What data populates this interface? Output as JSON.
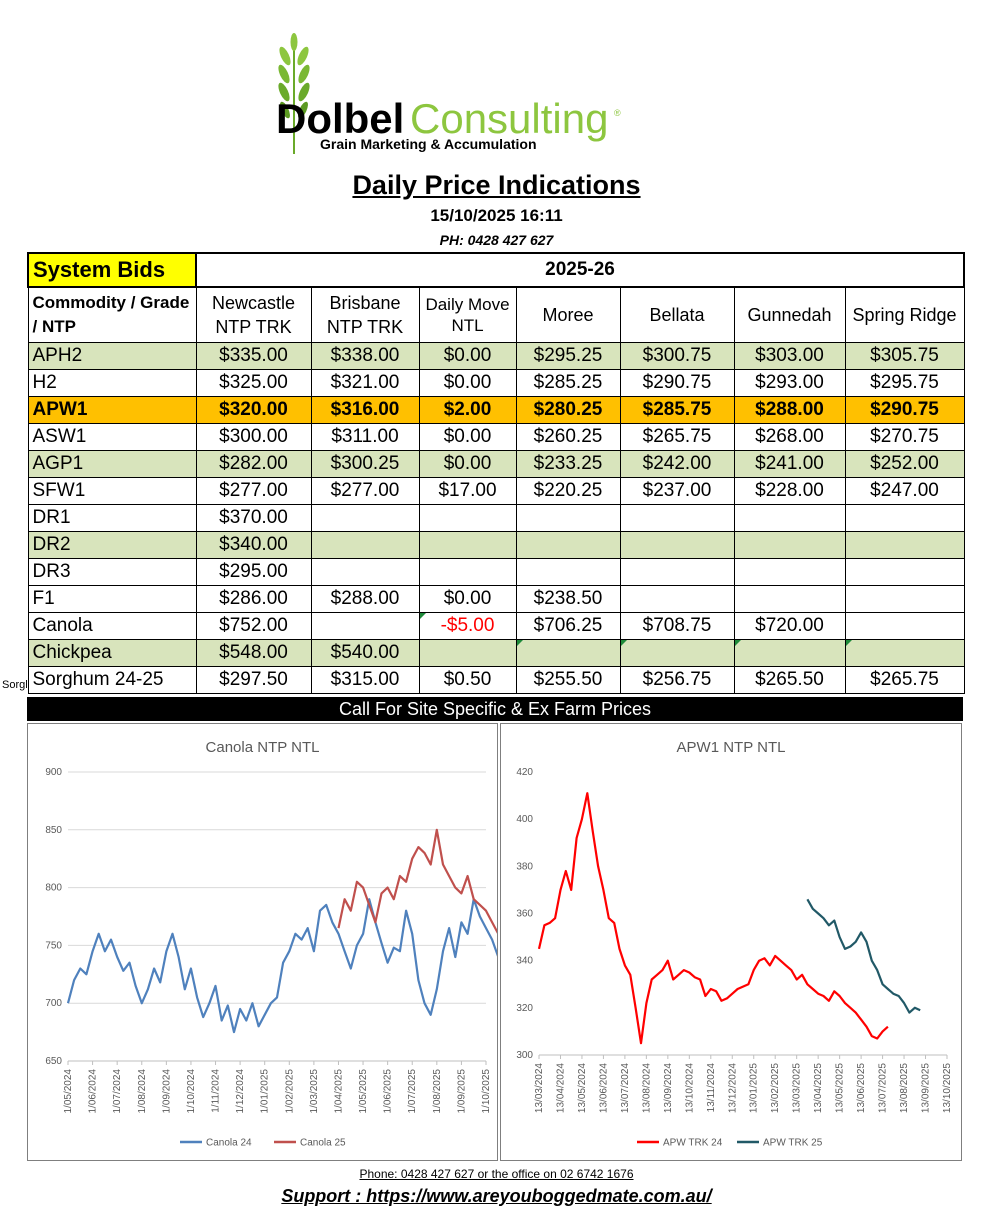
{
  "logo": {
    "brand_bold": "Dolbel",
    "brand_light": "Consulting",
    "registered": "®",
    "tagline": "Grain Marketing & Accumulation"
  },
  "header": {
    "title": "Daily Price Indications",
    "datetime": "15/10/2025 16:11",
    "phone": "PH: 0428 427 627"
  },
  "table": {
    "system_bids": "System Bids",
    "season": "2025-26",
    "columns": [
      "Commodity / Grade / NTP",
      "Newcastle NTP TRK",
      "Brisbane NTP TRK",
      "Daily Move NTL",
      "Moree",
      "Bellata",
      "Gunnedah",
      "Spring Ridge"
    ],
    "rows": [
      {
        "grade": "APH2",
        "cells": [
          "$335.00",
          "$338.00",
          "$0.00",
          "$295.25",
          "$300.75",
          "$303.00",
          "$305.75"
        ],
        "style": "shade"
      },
      {
        "grade": "H2",
        "cells": [
          "$325.00",
          "$321.00",
          "$0.00",
          "$285.25",
          "$290.75",
          "$293.00",
          "$295.75"
        ],
        "style": "plain"
      },
      {
        "grade": "APW1",
        "cells": [
          "$320.00",
          "$316.00",
          "$2.00",
          "$280.25",
          "$285.75",
          "$288.00",
          "$290.75"
        ],
        "style": "highlight"
      },
      {
        "grade": "ASW1",
        "cells": [
          "$300.00",
          "$311.00",
          "$0.00",
          "$260.25",
          "$265.75",
          "$268.00",
          "$270.75"
        ],
        "style": "plain"
      },
      {
        "grade": "AGP1",
        "cells": [
          "$282.00",
          "$300.25",
          "$0.00",
          "$233.25",
          "$242.00",
          "$241.00",
          "$252.00"
        ],
        "style": "shade"
      },
      {
        "grade": "SFW1",
        "cells": [
          "$277.00",
          "$277.00",
          "$17.00",
          "$220.25",
          "$237.00",
          "$228.00",
          "$247.00"
        ],
        "style": "plain"
      },
      {
        "grade": "DR1",
        "cells": [
          "$370.00",
          "",
          "",
          "",
          "",
          "",
          ""
        ],
        "style": "plain"
      },
      {
        "grade": "DR2",
        "cells": [
          "$340.00",
          "",
          "",
          "",
          "",
          "",
          ""
        ],
        "style": "shade"
      },
      {
        "grade": "DR3",
        "cells": [
          "$295.00",
          "",
          "",
          "",
          "",
          "",
          ""
        ],
        "style": "plain"
      },
      {
        "grade": "F1",
        "cells": [
          "$286.00",
          "$288.00",
          "$0.00",
          "$238.50",
          "",
          "",
          ""
        ],
        "style": "plain"
      },
      {
        "grade": "Canola",
        "cells": [
          "$752.00",
          "",
          "-$5.00",
          "$706.25",
          "$708.75",
          "$720.00",
          ""
        ],
        "style": "plain"
      },
      {
        "grade": "Chickpea",
        "cells": [
          "$548.00",
          "$540.00",
          "",
          "",
          "",
          "",
          ""
        ],
        "style": "shade"
      },
      {
        "grade": "Sorghum 24-25",
        "cells": [
          "$297.50",
          "$315.00",
          "$0.50",
          "$255.50",
          "$256.75",
          "$265.50",
          "$265.75"
        ],
        "style": "plain"
      }
    ],
    "truncated_side_label": "Sorghum",
    "banner": "Call For Site Specific & Ex Farm Prices"
  },
  "chart_data": [
    {
      "type": "line",
      "title": "Canola NTP NTL",
      "ylim": [
        650,
        900
      ],
      "yticks": [
        "650",
        "700",
        "750",
        "800",
        "850",
        "900"
      ],
      "xticks": [
        "1/05/2024",
        "1/06/2024",
        "1/07/2024",
        "1/08/2024",
        "1/09/2024",
        "1/10/2024",
        "1/11/2024",
        "1/12/2024",
        "1/01/2025",
        "1/02/2025",
        "1/03/2025",
        "1/04/2025",
        "1/05/2025",
        "1/06/2025",
        "1/07/2025",
        "1/08/2025",
        "1/09/2025",
        "1/10/2025"
      ],
      "grid": true,
      "legend": "bottom",
      "series": [
        {
          "name": "Canola 24",
          "color": "#4f81bd",
          "x_start": 0,
          "x_step": 0.25,
          "values": [
            700,
            720,
            730,
            725,
            745,
            760,
            745,
            755,
            740,
            728,
            735,
            715,
            700,
            712,
            730,
            718,
            745,
            760,
            740,
            712,
            730,
            705,
            688,
            700,
            715,
            685,
            698,
            675,
            695,
            685,
            700,
            680,
            690,
            700,
            705,
            735,
            745,
            760,
            755,
            765,
            745,
            780,
            785,
            770,
            760,
            745,
            730,
            750,
            760,
            790,
            770,
            752,
            735,
            748,
            745,
            780,
            760,
            720,
            700,
            690,
            712,
            745,
            765,
            740,
            770,
            760,
            790,
            775,
            765,
            755,
            740,
            735,
            745,
            748
          ]
        },
        {
          "name": "Canola 25",
          "color": "#c0504d",
          "x_start": 11,
          "x_step": 0.25,
          "values": [
            765,
            790,
            780,
            805,
            800,
            785,
            770,
            795,
            800,
            790,
            810,
            805,
            825,
            835,
            830,
            820,
            850,
            820,
            810,
            800,
            795,
            810,
            790,
            785,
            780,
            770,
            760,
            765,
            755,
            750
          ]
        }
      ]
    },
    {
      "type": "line",
      "title": "APW1 NTP NTL",
      "ylim": [
        300,
        420
      ],
      "yticks": [
        "300",
        "320",
        "340",
        "360",
        "380",
        "400",
        "420"
      ],
      "xticks": [
        "13/03/2024",
        "13/04/2024",
        "13/05/2024",
        "13/06/2024",
        "13/07/2024",
        "13/08/2024",
        "13/09/2024",
        "13/10/2024",
        "13/11/2024",
        "13/12/2024",
        "13/01/2025",
        "13/02/2025",
        "13/03/2025",
        "13/04/2025",
        "13/05/2025",
        "13/06/2025",
        "13/07/2025",
        "13/08/2025",
        "13/09/2025",
        "13/10/2025"
      ],
      "grid": false,
      "legend": "bottom",
      "series": [
        {
          "name": "APW TRK 24",
          "color": "#ff0000",
          "x_start": 0,
          "x_step": 0.25,
          "values": [
            345,
            355,
            356,
            358,
            370,
            378,
            370,
            392,
            400,
            411,
            395,
            380,
            370,
            358,
            356,
            345,
            338,
            334,
            320,
            305,
            322,
            332,
            334,
            336,
            340,
            332,
            334,
            336,
            335,
            333,
            332,
            325,
            328,
            327,
            323,
            324,
            326,
            328,
            329,
            330,
            336,
            340,
            341,
            338,
            342,
            340,
            338,
            336,
            332,
            334,
            330,
            328,
            326,
            325,
            323,
            327,
            325,
            322,
            320,
            318,
            315,
            312,
            308,
            307,
            310,
            312
          ]
        },
        {
          "name": "APW TRK 25",
          "color": "#215967",
          "x_start": 12.5,
          "x_step": 0.25,
          "values": [
            366,
            362,
            360,
            358,
            355,
            357,
            350,
            345,
            346,
            348,
            352,
            348,
            340,
            336,
            330,
            328,
            326,
            325,
            322,
            318,
            320,
            319
          ]
        }
      ]
    }
  ],
  "footer": {
    "phone_line": "Phone: 0428 427 627 or the office on 02 6742 1676",
    "support": "Support : https://www.areyouboggedmate.com.au/"
  }
}
